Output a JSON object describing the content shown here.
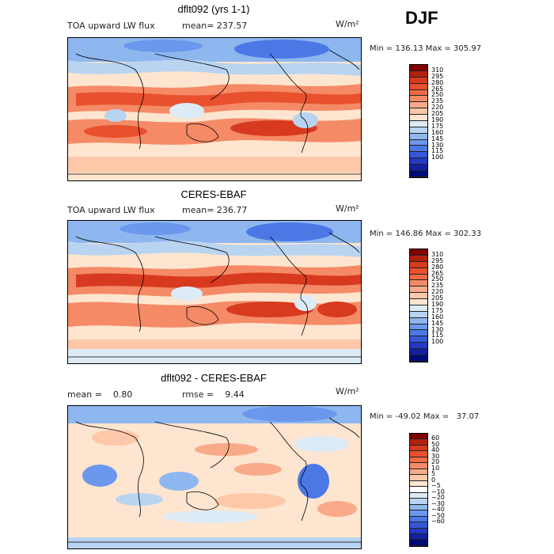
{
  "season": "DJF",
  "panels": [
    {
      "title": "dflt092 (yrs 1-1)",
      "left_label": "TOA upward LW flux",
      "center_label": "mean= 237.57",
      "units": "W/m²",
      "minmax": "Min = 136.13 Max = 305.97",
      "colorbar": {
        "colors": [
          "#800000",
          "#b2200f",
          "#d73a1f",
          "#e8502e",
          "#f06a46",
          "#f58a66",
          "#f9aa88",
          "#fcc8a9",
          "#fde5cf",
          "#ddebf7",
          "#b9d4f1",
          "#8fb7ef",
          "#6b98ec",
          "#4c78e6",
          "#3558d8",
          "#2339c4",
          "#1220a0",
          "#000a78"
        ],
        "labels": [
          "310",
          "295",
          "280",
          "265",
          "250",
          "235",
          "220",
          "205",
          "190",
          "175",
          "160",
          "145",
          "130",
          "115",
          "100"
        ]
      }
    },
    {
      "title": "CERES-EBAF",
      "left_label": "TOA upward LW flux",
      "center_label": "mean= 236.77",
      "units": "W/m²",
      "minmax": "Min = 146.86 Max = 302.33",
      "colorbar": {
        "colors": [
          "#800000",
          "#b2200f",
          "#d73a1f",
          "#e8502e",
          "#f06a46",
          "#f58a66",
          "#f9aa88",
          "#fcc8a9",
          "#fde5cf",
          "#ddebf7",
          "#b9d4f1",
          "#8fb7ef",
          "#6b98ec",
          "#4c78e6",
          "#3558d8",
          "#2339c4",
          "#1220a0",
          "#000a78"
        ],
        "labels": [
          "310",
          "295",
          "280",
          "265",
          "250",
          "235",
          "220",
          "205",
          "190",
          "175",
          "160",
          "145",
          "130",
          "115",
          "100"
        ]
      }
    },
    {
      "title": "dflt092 - CERES-EBAF",
      "left_label": "mean =    0.80",
      "center_label": "rmse =    9.44",
      "units": "W/m²",
      "minmax": "Min = -49.02 Max =   37.07",
      "colorbar": {
        "colors": [
          "#800000",
          "#b2200f",
          "#d73a1f",
          "#e8502e",
          "#f06a46",
          "#f58a66",
          "#f9aa88",
          "#fcc8a9",
          "#fde5cf",
          "#ffffff",
          "#ddebf7",
          "#b9d4f1",
          "#8fb7ef",
          "#6b98ec",
          "#4c78e6",
          "#3558d8",
          "#2339c4",
          "#1220a0",
          "#000a78"
        ],
        "labels": [
          "60",
          "50",
          "40",
          "30",
          "20",
          "10",
          "5",
          "0",
          "−5",
          "−10",
          "−20",
          "−30",
          "−40",
          "−50",
          "−60"
        ]
      }
    }
  ]
}
